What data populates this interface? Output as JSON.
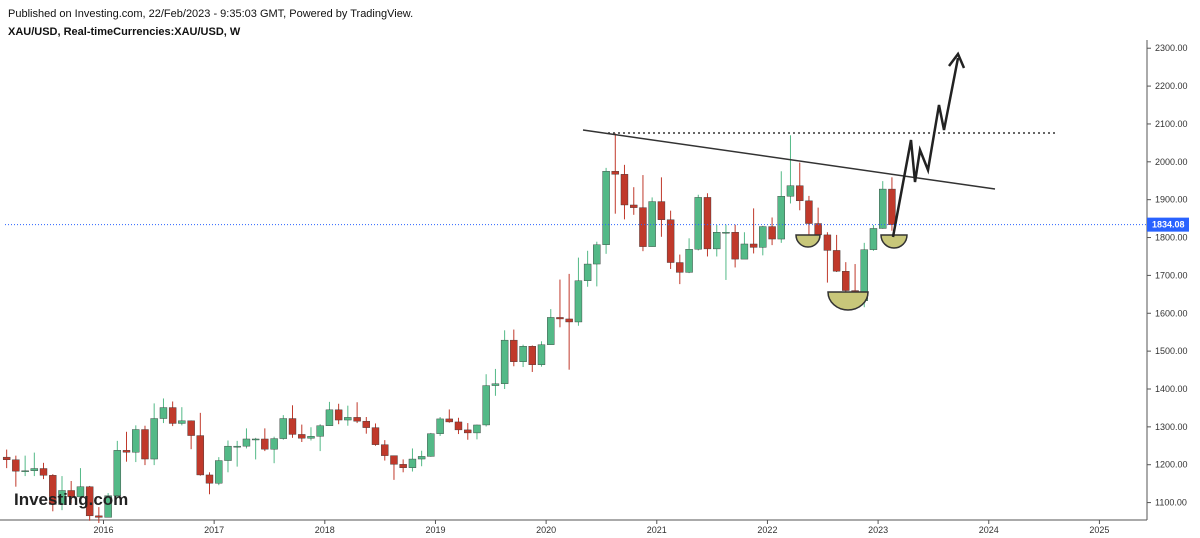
{
  "header": {
    "published": "Published on Investing.com, 22/Feb/2023 - 9:35:03 GMT, Powered by TradingView.",
    "symbol": "XAU/USD, Real-timeCurrencies:XAU/USD, W",
    "logo": "Investing.com"
  },
  "chart_data": {
    "type": "candlestick",
    "up_color": "#53b987",
    "down_color": "#c0392b",
    "xlim": [
      2015.11,
      2025.43
    ],
    "xticks": [
      2016,
      2017,
      2018,
      2019,
      2020,
      2021,
      2022,
      2023,
      2024,
      2025
    ],
    "ylim": [
      1054,
      2327
    ],
    "yticks": [
      {
        "value": 1100,
        "label": "1100.00"
      },
      {
        "value": 1200,
        "label": "1200.00"
      },
      {
        "value": 1300,
        "label": "1300.00"
      },
      {
        "value": 1400,
        "label": "1400.00"
      },
      {
        "value": 1500,
        "label": "1500.00"
      },
      {
        "value": 1600,
        "label": "1600.00"
      },
      {
        "value": 1700,
        "label": "1700.00"
      },
      {
        "value": 1800,
        "label": "1800.00"
      },
      {
        "value": 1900,
        "label": "1900.00"
      },
      {
        "value": 2000,
        "label": "2000.00"
      },
      {
        "value": 2100,
        "label": "2100.00"
      },
      {
        "value": 2200,
        "label": "2200.00"
      },
      {
        "value": 2300,
        "label": "2300.00"
      }
    ],
    "last_price": 1834.08,
    "x": [
      2015.125,
      2015.208,
      2015.292,
      2015.375,
      2015.458,
      2015.542,
      2015.625,
      2015.708,
      2015.792,
      2015.875,
      2015.958,
      2016.042,
      2016.125,
      2016.208,
      2016.292,
      2016.375,
      2016.458,
      2016.542,
      2016.625,
      2016.708,
      2016.792,
      2016.875,
      2016.958,
      2017.042,
      2017.125,
      2017.208,
      2017.292,
      2017.375,
      2017.458,
      2017.542,
      2017.625,
      2017.708,
      2017.792,
      2017.875,
      2017.958,
      2018.042,
      2018.125,
      2018.208,
      2018.292,
      2018.375,
      2018.458,
      2018.542,
      2018.625,
      2018.708,
      2018.792,
      2018.875,
      2018.958,
      2019.042,
      2019.125,
      2019.208,
      2019.292,
      2019.375,
      2019.458,
      2019.542,
      2019.625,
      2019.708,
      2019.792,
      2019.875,
      2019.958,
      2020.042,
      2020.125,
      2020.208,
      2020.292,
      2020.375,
      2020.458,
      2020.542,
      2020.625,
      2020.708,
      2020.792,
      2020.875,
      2020.958,
      2021.042,
      2021.125,
      2021.208,
      2021.292,
      2021.375,
      2021.458,
      2021.542,
      2021.625,
      2021.708,
      2021.792,
      2021.875,
      2021.958,
      2022.042,
      2022.125,
      2022.208,
      2022.292,
      2022.375,
      2022.458,
      2022.542,
      2022.625,
      2022.708,
      2022.792,
      2022.875,
      2022.958,
      2023.042,
      2023.125
    ],
    "open": [
      1220,
      1213,
      1183,
      1184,
      1190,
      1172,
      1095,
      1132,
      1115,
      1142,
      1065,
      1061,
      1118,
      1238,
      1233,
      1293,
      1215,
      1322,
      1351,
      1309,
      1316,
      1277,
      1173,
      1151,
      1211,
      1249,
      1249,
      1268,
      1268,
      1241,
      1269,
      1322,
      1280,
      1270,
      1275,
      1303,
      1345,
      1318,
      1325,
      1315,
      1298,
      1253,
      1224,
      1201,
      1192,
      1215,
      1222,
      1282,
      1321,
      1313,
      1292,
      1284,
      1305,
      1409,
      1414,
      1529,
      1472,
      1513,
      1464,
      1517,
      1589,
      1585,
      1577,
      1686,
      1730,
      1781,
      1975,
      1967,
      1886,
      1879,
      1776,
      1895,
      1847,
      1734,
      1708,
      1769,
      1906,
      1770,
      1814,
      1814,
      1743,
      1783,
      1774,
      1829,
      1796,
      1909,
      1937,
      1897,
      1837,
      1807,
      1766,
      1711,
      1660,
      1633,
      1768,
      1824,
      1928
    ],
    "high": [
      1240,
      1224,
      1224,
      1232,
      1205,
      1175,
      1170,
      1157,
      1191,
      1144,
      1088,
      1125,
      1263,
      1287,
      1304,
      1303,
      1362,
      1375,
      1367,
      1352,
      1317,
      1337,
      1180,
      1220,
      1264,
      1263,
      1296,
      1271,
      1296,
      1274,
      1331,
      1357,
      1306,
      1299,
      1307,
      1366,
      1361,
      1356,
      1365,
      1326,
      1309,
      1265,
      1224,
      1214,
      1243,
      1237,
      1284,
      1326,
      1346,
      1324,
      1310,
      1306,
      1439,
      1453,
      1555,
      1557,
      1517,
      1515,
      1526,
      1611,
      1689,
      1704,
      1747,
      1765,
      1789,
      1984,
      2075,
      1992,
      1933,
      1965,
      1906,
      1959,
      1871,
      1755,
      1798,
      1913,
      1917,
      1833,
      1834,
      1834,
      1814,
      1877,
      1831,
      1853,
      1975,
      2070,
      1998,
      1910,
      1879,
      1814,
      1807,
      1735,
      1730,
      1786,
      1833,
      1949,
      1959
    ],
    "low": [
      1191,
      1142,
      1170,
      1170,
      1162,
      1077,
      1080,
      1098,
      1112,
      1052,
      1046,
      1062,
      1111,
      1208,
      1207,
      1199,
      1199,
      1310,
      1302,
      1304,
      1241,
      1171,
      1122,
      1146,
      1180,
      1195,
      1243,
      1214,
      1236,
      1204,
      1266,
      1271,
      1260,
      1264,
      1236,
      1303,
      1307,
      1303,
      1310,
      1282,
      1250,
      1211,
      1160,
      1180,
      1182,
      1196,
      1221,
      1276,
      1311,
      1281,
      1266,
      1267,
      1301,
      1382,
      1400,
      1460,
      1458,
      1445,
      1459,
      1517,
      1563,
      1451,
      1567,
      1670,
      1671,
      1757,
      1863,
      1848,
      1860,
      1764,
      1776,
      1802,
      1717,
      1677,
      1706,
      1766,
      1750,
      1750,
      1688,
      1721,
      1746,
      1758,
      1753,
      1780,
      1786,
      1890,
      1872,
      1787,
      1805,
      1681,
      1709,
      1615,
      1617,
      1616,
      1765,
      1823,
      1818
    ],
    "close": [
      1213,
      1183,
      1184,
      1190,
      1172,
      1095,
      1132,
      1115,
      1142,
      1065,
      1061,
      1118,
      1238,
      1233,
      1293,
      1215,
      1322,
      1351,
      1309,
      1316,
      1277,
      1173,
      1151,
      1211,
      1249,
      1249,
      1268,
      1268,
      1241,
      1269,
      1322,
      1280,
      1270,
      1275,
      1303,
      1345,
      1318,
      1325,
      1315,
      1298,
      1253,
      1224,
      1201,
      1192,
      1215,
      1222,
      1282,
      1321,
      1313,
      1292,
      1284,
      1305,
      1409,
      1414,
      1529,
      1472,
      1513,
      1464,
      1517,
      1589,
      1585,
      1577,
      1686,
      1730,
      1781,
      1975,
      1967,
      1886,
      1879,
      1776,
      1895,
      1847,
      1734,
      1708,
      1769,
      1906,
      1770,
      1814,
      1814,
      1743,
      1783,
      1774,
      1829,
      1796,
      1909,
      1937,
      1897,
      1837,
      1807,
      1766,
      1711,
      1660,
      1633,
      1768,
      1824,
      1928,
      1834
    ]
  }
}
